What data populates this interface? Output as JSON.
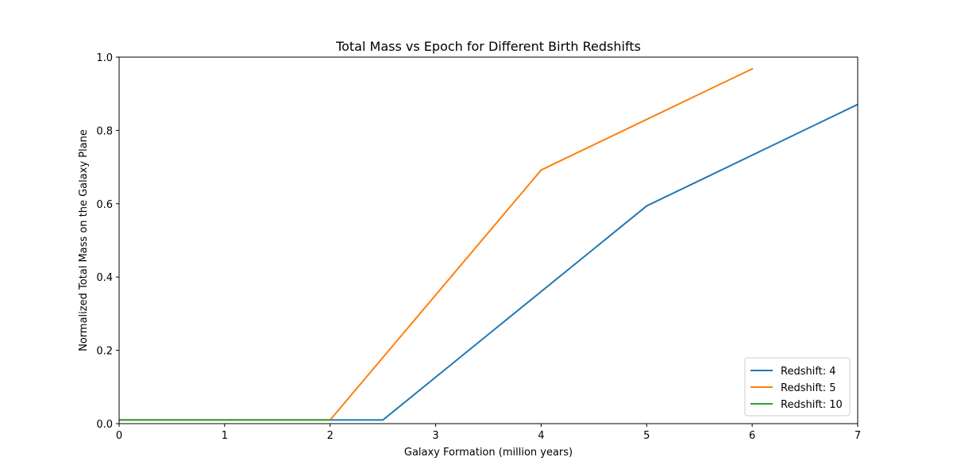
{
  "chart_data": {
    "type": "line",
    "title": "Total Mass vs Epoch for Different Birth Redshifts",
    "xlabel": "Galaxy Formation (million years)",
    "ylabel": "Normalized Total Mass on the Galaxy Plane",
    "xlim": [
      0,
      7
    ],
    "ylim": [
      0,
      1.0
    ],
    "xticks": [
      0,
      1,
      2,
      3,
      4,
      5,
      6,
      7
    ],
    "xtick_labels": [
      "0",
      "1",
      "2",
      "3",
      "4",
      "5",
      "6",
      "7"
    ],
    "yticks": [
      0,
      0.2,
      0.4,
      0.6,
      0.8,
      1.0
    ],
    "ytick_labels": [
      "0.0",
      "0.2",
      "0.4",
      "0.6",
      "0.8",
      "1.0"
    ],
    "grid": false,
    "legend_position": "lower-right",
    "series": [
      {
        "name": "Redshift: 4",
        "color": "#1f77b4",
        "x": [
          0,
          2.5,
          5,
          7
        ],
        "y": [
          0.01,
          0.01,
          0.594,
          0.871
        ]
      },
      {
        "name": "Redshift: 5",
        "color": "#ff7f0e",
        "x": [
          0,
          2,
          4,
          6
        ],
        "y": [
          0.01,
          0.01,
          0.692,
          0.968
        ]
      },
      {
        "name": "Redshift: 10",
        "color": "#2ca02c",
        "x": [
          0,
          2
        ],
        "y": [
          0.01,
          0.01
        ]
      }
    ]
  }
}
